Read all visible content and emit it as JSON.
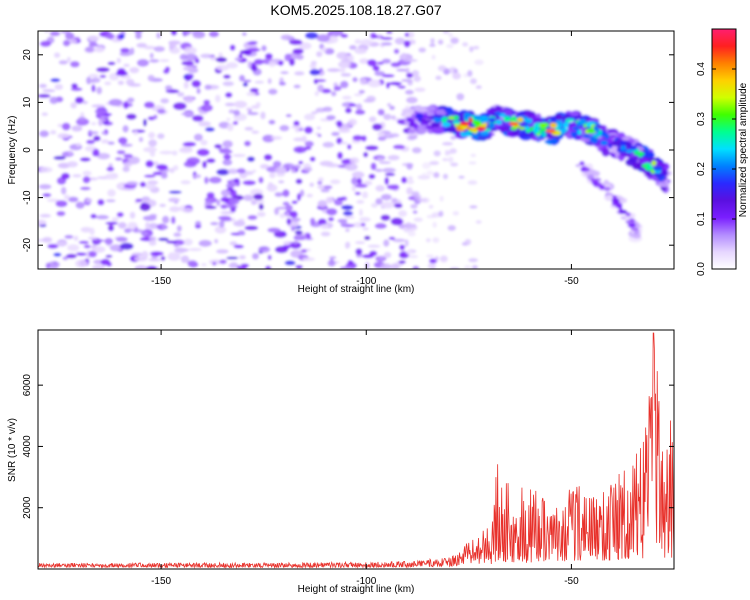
{
  "title": "KOM5.2025.108.18.27.G07",
  "colors": {
    "axis": "#000000",
    "snr_line": "#e8302a",
    "colorbar_stops": [
      "#ffffff",
      "#e6d6ff",
      "#b38cff",
      "#7a1fff",
      "#5a10e0",
      "#2a2aff",
      "#0080ff",
      "#00e0ff",
      "#00ff90",
      "#40ff00",
      "#d0ff00",
      "#ffd000",
      "#ff8000",
      "#ff2020",
      "#ff1f70"
    ]
  },
  "chart_data": [
    {
      "type": "heatmap",
      "name": "spectrogram",
      "xlabel": "Height of straight line (km)",
      "ylabel": "Frequency (Hz)",
      "xlim": [
        -180,
        -25
      ],
      "ylim": [
        -25,
        25
      ],
      "x_ticks": [
        -150,
        -100,
        -50
      ],
      "y_ticks": [
        -20,
        -10,
        0,
        10,
        20
      ],
      "colorbar": {
        "label": "Normalized spectral amplitude",
        "range": [
          0,
          0.48
        ],
        "ticks": [
          0.0,
          0.1,
          0.2,
          0.3,
          0.4
        ]
      },
      "features": {
        "noise_region": {
          "x_range": [
            -180,
            -88
          ],
          "freq_range": [
            -25,
            25
          ],
          "amplitude_range": [
            0.03,
            0.12
          ]
        },
        "signal_band": [
          {
            "x": -90,
            "freq": 6.0,
            "amp": 0.15
          },
          {
            "x": -85,
            "freq": 6.5,
            "amp": 0.18
          },
          {
            "x": -80,
            "freq": 6.0,
            "amp": 0.3
          },
          {
            "x": -76,
            "freq": 5.5,
            "amp": 0.45
          },
          {
            "x": -72,
            "freq": 4.5,
            "amp": 0.46
          },
          {
            "x": -68,
            "freq": 7.0,
            "amp": 0.22
          },
          {
            "x": -64,
            "freq": 5.5,
            "amp": 0.42
          },
          {
            "x": -60,
            "freq": 5.0,
            "amp": 0.33
          },
          {
            "x": -55,
            "freq": 4.0,
            "amp": 0.42
          },
          {
            "x": -50,
            "freq": 5.5,
            "amp": 0.3
          },
          {
            "x": -45,
            "freq": 4.0,
            "amp": 0.38
          },
          {
            "x": -42,
            "freq": 2.0,
            "amp": 0.22
          },
          {
            "x": -38,
            "freq": 1.0,
            "amp": 0.2
          },
          {
            "x": -34,
            "freq": -1.0,
            "amp": 0.3
          },
          {
            "x": -30,
            "freq": -3.5,
            "amp": 0.35
          },
          {
            "x": -27,
            "freq": -6.0,
            "amp": 0.2
          }
        ],
        "branch": [
          {
            "x": -48,
            "freq": -3.0,
            "amp": 0.1
          },
          {
            "x": -42,
            "freq": -8.0,
            "amp": 0.12
          },
          {
            "x": -36,
            "freq": -14.0,
            "amp": 0.12
          },
          {
            "x": -34,
            "freq": -18.0,
            "amp": 0.08
          }
        ]
      }
    },
    {
      "type": "line",
      "name": "snr",
      "xlabel": "Height of straight line (km)",
      "ylabel": "SNR (10 * v/v)",
      "xlim": [
        -180,
        -25
      ],
      "ylim": [
        0,
        7800
      ],
      "x_ticks": [
        -150,
        -100,
        -50
      ],
      "y_ticks": [
        2000,
        4000,
        6000
      ],
      "envelope": {
        "x": [
          -180,
          -120,
          -90,
          -80,
          -75,
          -70,
          -68,
          -66,
          -64,
          -60,
          -55,
          -52,
          -50,
          -45,
          -40,
          -35,
          -32,
          -30,
          -27,
          -25
        ],
        "min": [
          60,
          50,
          60,
          80,
          150,
          150,
          200,
          200,
          200,
          200,
          250,
          250,
          250,
          250,
          300,
          300,
          300,
          300,
          300,
          400
        ],
        "max": [
          200,
          200,
          250,
          400,
          900,
          1400,
          3500,
          2900,
          2800,
          2800,
          2000,
          2100,
          2900,
          2500,
          3100,
          3400,
          4700,
          7700,
          4400,
          5800
        ]
      }
    }
  ]
}
